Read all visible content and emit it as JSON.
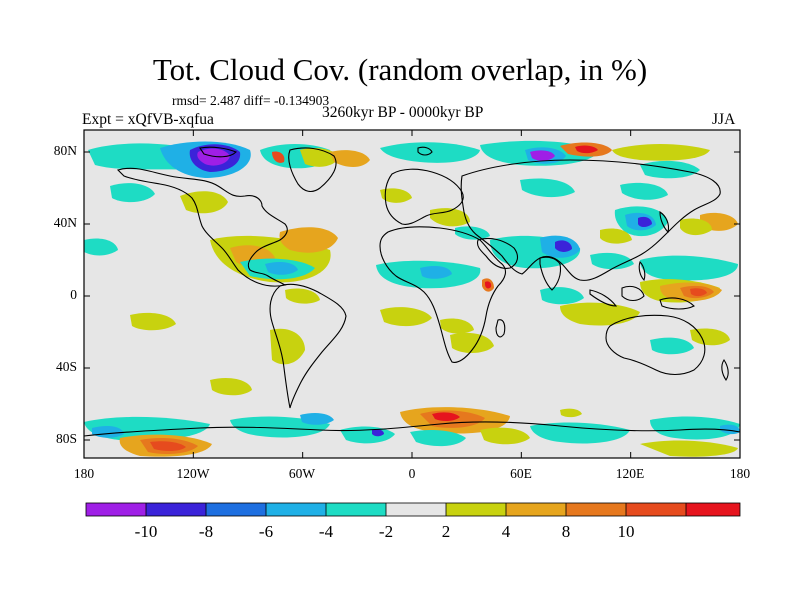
{
  "title": "Tot. Cloud Cov. (random overlap, in %)",
  "stats": "rmsd= 2.487 diff= -0.134903",
  "experiment": "Expt = xQfVB-xqfua",
  "period": "3260kyr BP - 0000kyr BP",
  "season": "JJA",
  "map": {
    "background_color": "#e6e6e6",
    "lat_ticks": [
      "80N",
      "40N",
      "0",
      "40S",
      "80S"
    ],
    "lon_ticks": [
      "180",
      "120W",
      "60W",
      "0",
      "60E",
      "120E",
      "180"
    ]
  },
  "colorbar": {
    "labels": [
      "-10",
      "-8",
      "-6",
      "-4",
      "-2",
      "2",
      "4",
      "8",
      "10"
    ],
    "colors": [
      "#9f1fe6",
      "#3b23d9",
      "#1e6fe0",
      "#1fb0e6",
      "#1edcc4",
      "#e6e6e6",
      "#c8d20f",
      "#e6a51e",
      "#e6781e",
      "#e64b1e",
      "#e6141e"
    ]
  }
}
